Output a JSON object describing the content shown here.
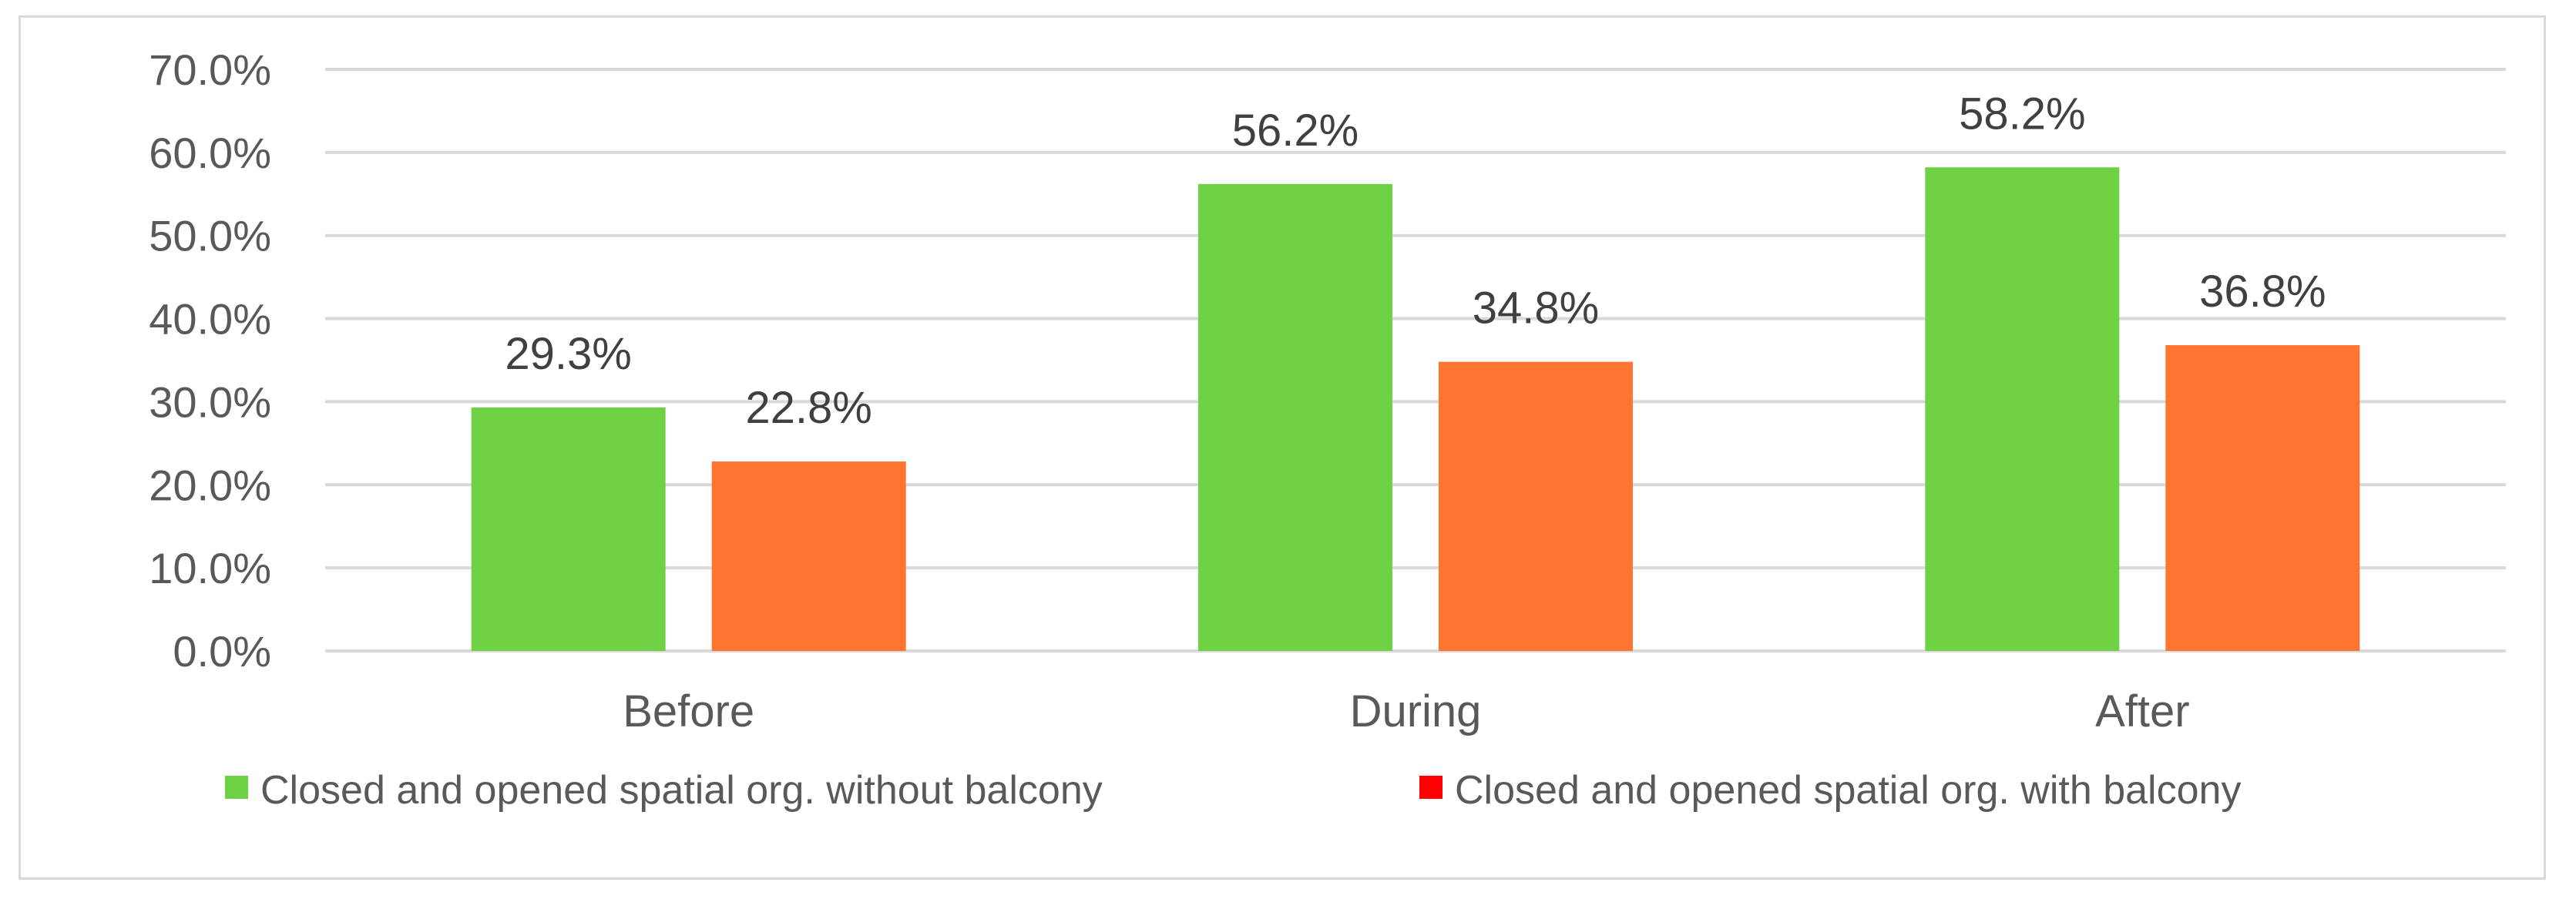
{
  "chart_data": {
    "type": "bar",
    "categories": [
      "Before",
      "During",
      "After"
    ],
    "series": [
      {
        "name": "Closed and opened spatial org. without balcony",
        "values": [
          29.3,
          56.2,
          58.2
        ],
        "labels": [
          "29.3%",
          "56.2%",
          "58.2%"
        ],
        "color": "#6fd144",
        "legend_color": "#6fd144"
      },
      {
        "name": "Closed and opened spatial org. with balcony",
        "values": [
          22.8,
          34.8,
          36.8
        ],
        "labels": [
          "22.8%",
          "34.8%",
          "36.8%"
        ],
        "color": "#ff742e",
        "legend_color": "#ff0000"
      }
    ],
    "yticks": [
      "0.0%",
      "10.0%",
      "20.0%",
      "30.0%",
      "40.0%",
      "50.0%",
      "60.0%",
      "70.0%"
    ],
    "ylim": [
      0,
      70
    ],
    "title": "",
    "xlabel": "",
    "ylabel": "",
    "grid": true,
    "legend_position": "bottom"
  }
}
